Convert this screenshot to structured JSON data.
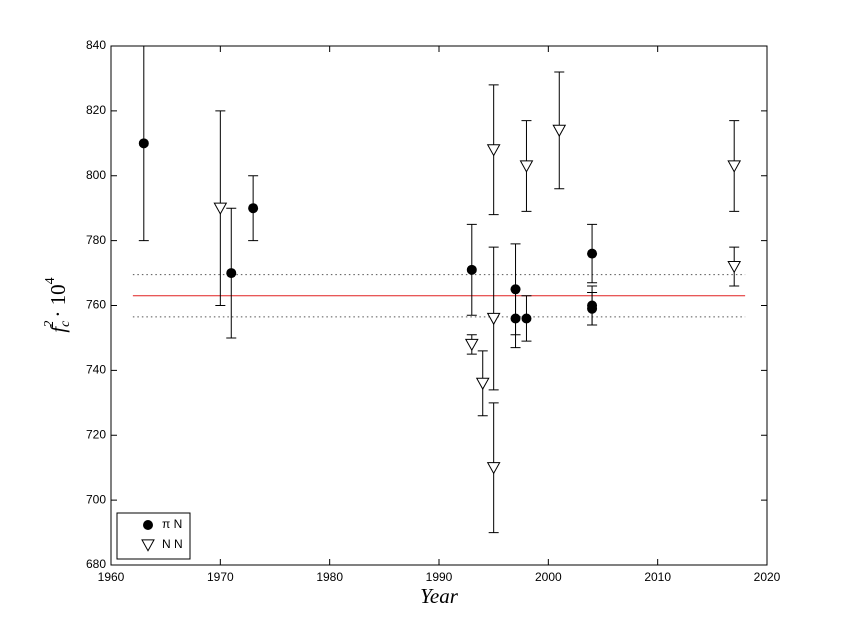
{
  "chart_data": {
    "type": "scatter",
    "xlabel": "Year",
    "ylabel": {
      "symbol": "f",
      "subscript": "c",
      "superscript": "2",
      "factor": "· 10",
      "exponent": "4"
    },
    "xlim": [
      1960,
      2020
    ],
    "xticks": [
      1960,
      1970,
      1980,
      1990,
      2000,
      2010,
      2020
    ],
    "ylim": [
      680,
      840
    ],
    "yticks": [
      680,
      700,
      720,
      740,
      760,
      780,
      800,
      820,
      840
    ],
    "legend": "lower left",
    "series": [
      {
        "name": "π N",
        "marker": "circle",
        "color": "#000000",
        "x": [
          1963,
          1971,
          1973,
          1993,
          1997,
          1997,
          1998,
          2004,
          2004,
          2004
        ],
        "values": [
          810,
          770,
          790,
          771,
          765,
          756,
          756,
          776,
          760,
          759
        ],
        "errors": [
          30,
          20,
          10,
          14,
          14,
          9,
          7,
          9,
          6,
          5
        ]
      },
      {
        "name": "N N",
        "marker": "triangle-down",
        "color": "#000000",
        "x": [
          1970,
          1993,
          1994,
          1995,
          1995,
          1995,
          1998,
          2001,
          2017,
          2017
        ],
        "values": [
          790,
          748,
          736,
          808,
          756,
          710,
          803,
          814,
          803,
          772
        ],
        "errors": [
          30,
          3,
          10,
          20,
          22,
          20,
          14,
          18,
          14,
          6
        ]
      }
    ],
    "reference_lines": [
      {
        "value": 763,
        "x": [
          1962,
          2018
        ],
        "color": "#e02020",
        "style": "solid"
      },
      {
        "value": 769.5,
        "x": [
          1962,
          2018
        ],
        "color": "#555555",
        "style": "dotted"
      },
      {
        "value": 756.5,
        "x": [
          1962,
          2018
        ],
        "color": "#555555",
        "style": "dotted"
      }
    ]
  }
}
